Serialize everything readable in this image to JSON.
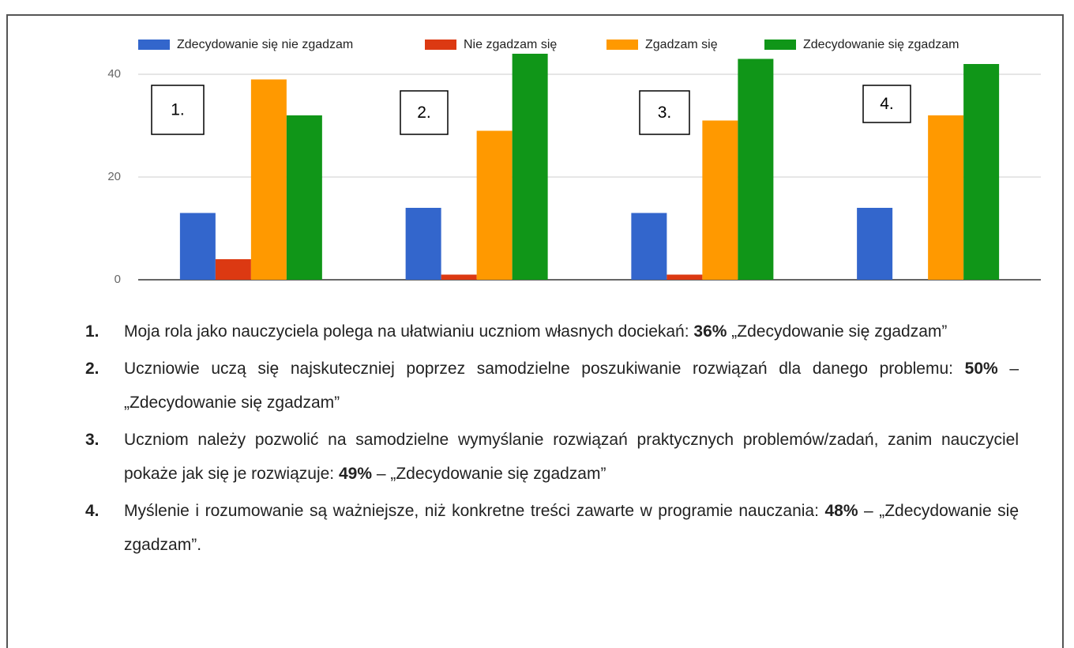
{
  "chart_data": {
    "type": "bar",
    "categories": [
      null,
      null,
      null,
      null
    ],
    "annotations": [
      "1.",
      "2.",
      "3.",
      "4."
    ],
    "series": [
      {
        "name": "Zdecydowanie się nie zgadzam",
        "color": "#3366cc",
        "values": [
          13,
          14,
          13,
          14
        ]
      },
      {
        "name": "Nie zgadzam się",
        "color": "#dc3912",
        "values": [
          4,
          1,
          1,
          0
        ]
      },
      {
        "name": "Zgadzam się",
        "color": "#ff9900",
        "values": [
          39,
          29,
          31,
          32
        ]
      },
      {
        "name": "Zdecydowanie się zgadzam",
        "color": "#109618",
        "values": [
          32,
          44,
          43,
          42
        ]
      }
    ],
    "ylim": [
      0,
      45
    ],
    "yticks": [
      0,
      20,
      40
    ],
    "grid": true,
    "legend": "top"
  },
  "list": [
    {
      "number": "1.",
      "text": "Moja rola jako nauczyciela polega na ułatwianiu uczniom własnych dociekań: ",
      "bold": "36%",
      "tail": " „Zdecydowanie się zgadzam”"
    },
    {
      "number": "2.",
      "text": "Uczniowie uczą się najskuteczniej poprzez samodzielne poszukiwanie rozwiązań dla danego problemu: ",
      "bold": "50%",
      "tail": " – „Zdecydowanie się zgadzam”"
    },
    {
      "number": "3.",
      "text": "Uczniom należy pozwolić na samodzielne wymyślanie rozwiązań praktycznych problemów/zadań, zanim nauczyciel pokaże jak się je rozwiązuje: ",
      "bold": "49%",
      "tail": " – „Zdecydowanie się zgadzam”"
    },
    {
      "number": "4.",
      "text": "Myślenie i rozumowanie są ważniejsze, niż konkretne treści zawarte w programie nauczania: ",
      "bold": "48%",
      "tail": " – „Zdecydowanie się zgadzam”."
    }
  ]
}
